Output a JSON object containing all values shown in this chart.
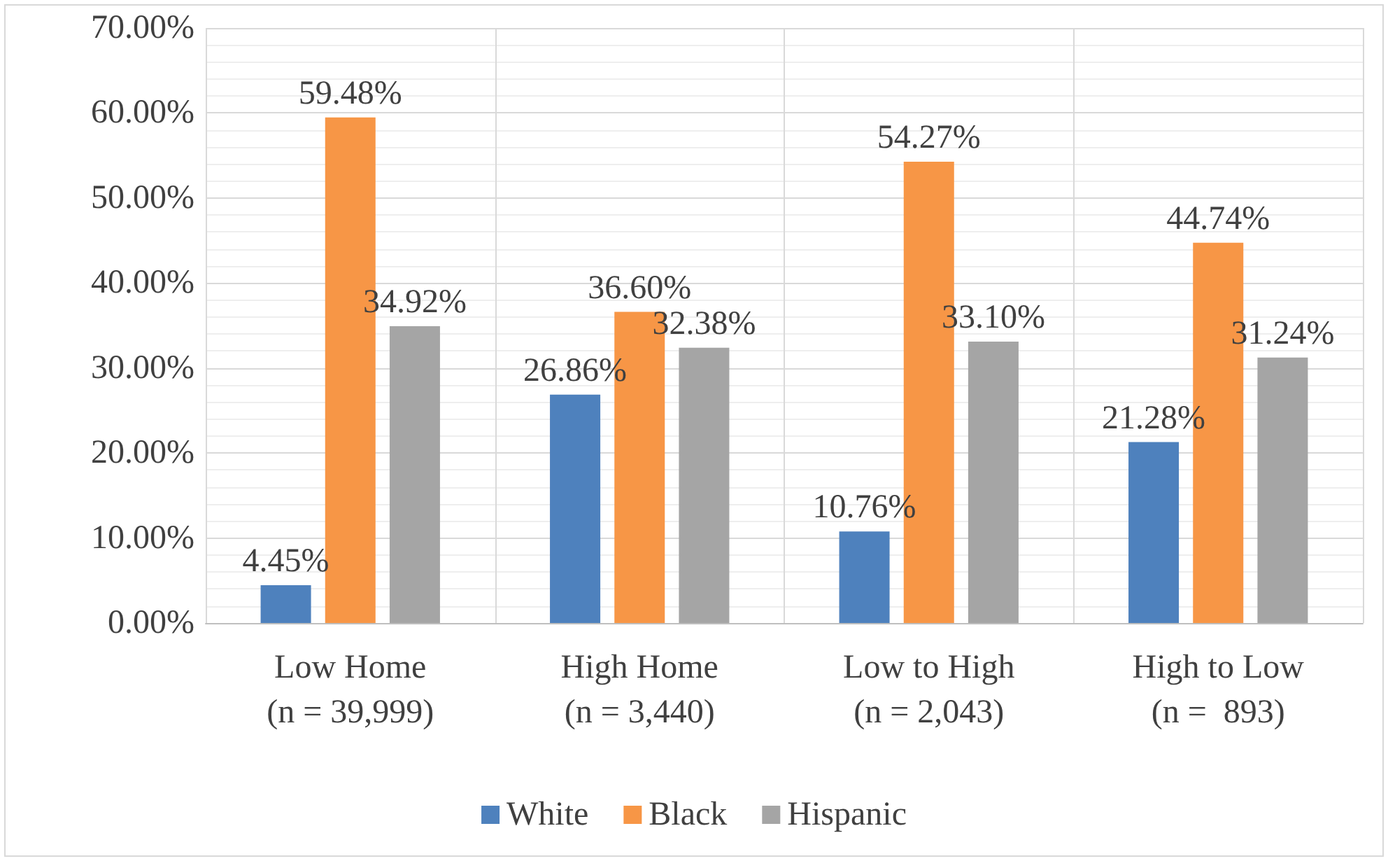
{
  "chart_data": {
    "type": "bar",
    "categories": [
      "Low Home\n(n = 39,999)",
      "High Home\n(n = 3,440)",
      "Low to High\n(n = 2,043)",
      "High to Low\n(n =  893)"
    ],
    "series": [
      {
        "name": "White",
        "color": "#4e81bd",
        "values": [
          4.45,
          26.86,
          10.76,
          21.28
        ],
        "value_labels": [
          "4.45%",
          "26.86%",
          "10.76%",
          "21.28%"
        ]
      },
      {
        "name": "Black",
        "color": "#f79646",
        "values": [
          59.48,
          36.6,
          54.27,
          44.74
        ],
        "value_labels": [
          "59.48%",
          "36.60%",
          "54.27%",
          "44.74%"
        ]
      },
      {
        "name": "Hispanic",
        "color": "#a5a5a5",
        "values": [
          34.92,
          32.38,
          33.1,
          31.24
        ],
        "value_labels": [
          "34.92%",
          "32.38%",
          "33.10%",
          "31.24%"
        ]
      }
    ],
    "ylim": [
      0,
      70
    ],
    "yticks": [
      {
        "value": 0,
        "label": "0.00%"
      },
      {
        "value": 10,
        "label": "10.00%"
      },
      {
        "value": 20,
        "label": "20.00%"
      },
      {
        "value": 30,
        "label": "30.00%"
      },
      {
        "value": 40,
        "label": "40.00%"
      },
      {
        "value": 50,
        "label": "50.00%"
      },
      {
        "value": 60,
        "label": "60.00%"
      },
      {
        "value": 70,
        "label": "70.00%"
      }
    ],
    "grid": true,
    "legend": "bottom"
  }
}
